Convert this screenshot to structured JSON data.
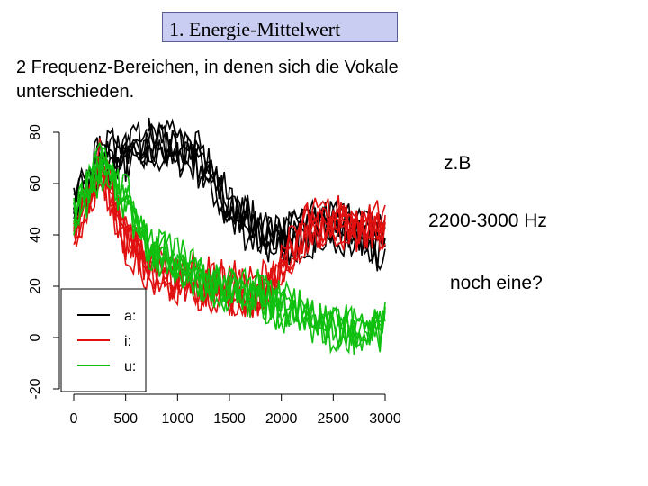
{
  "slide": {
    "title": "1. Energie-Mittelwert",
    "intro": "2 Frequenz-Bereichen, in denen sich die Vokale unterschieden.",
    "notes": [
      "z.B",
      "2200-3000 Hz",
      "noch eine?"
    ]
  },
  "chart_data": {
    "type": "line",
    "title": "",
    "xlabel": "",
    "ylabel": "",
    "xlim": [
      0,
      3000
    ],
    "ylim": [
      -20,
      80
    ],
    "x_ticks": [
      "0",
      "500",
      "1000",
      "1500",
      "2000",
      "2500",
      "3000"
    ],
    "y_ticks": [
      "-20",
      "0",
      "20",
      "40",
      "60",
      "80"
    ],
    "legend_position": "bottom-left",
    "legend": [
      {
        "label": "a:",
        "color": "#000000"
      },
      {
        "label": "i:",
        "color": "#e01010"
      },
      {
        "label": "u:",
        "color": "#10c010"
      }
    ],
    "x": [
      0,
      250,
      500,
      750,
      1000,
      1250,
      1500,
      1750,
      2000,
      2250,
      2500,
      2750,
      3000
    ],
    "series": [
      {
        "name": "a:",
        "color": "#000000",
        "values": [
          48,
          70,
          72,
          75,
          74,
          68,
          50,
          42,
          38,
          42,
          45,
          42,
          36
        ]
      },
      {
        "name": "i:",
        "color": "#e01010",
        "values": [
          40,
          68,
          40,
          28,
          24,
          22,
          20,
          18,
          28,
          44,
          46,
          44,
          46
        ]
      },
      {
        "name": "u:",
        "color": "#10c010",
        "values": [
          46,
          66,
          54,
          34,
          28,
          22,
          18,
          16,
          12,
          8,
          4,
          2,
          4
        ]
      }
    ],
    "line_count_per_series": 6
  }
}
